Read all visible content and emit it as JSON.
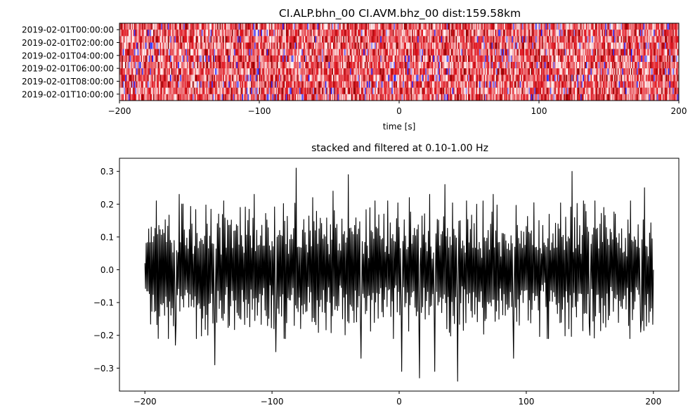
{
  "chart_data": [
    {
      "type": "heatmap",
      "title": "CI.ALP.bhn_00 CI.AVM.bhz_00  dist:159.58km",
      "xlabel": "time [s]",
      "ylabel": "",
      "xlim": [
        -200,
        200
      ],
      "x_ticks": [
        "−200",
        "−100",
        "0",
        "100",
        "200"
      ],
      "x_tick_values": [
        -200,
        -100,
        0,
        100,
        200
      ],
      "y_ticks": [
        "2019-02-01T00:00:00",
        "2019-02-01T02:00:00",
        "2019-02-01T04:00:00",
        "2019-02-01T06:00:00",
        "2019-02-01T08:00:00",
        "2019-02-01T10:00:00"
      ],
      "rows": 12,
      "colormap": "seismic",
      "colors": {
        "negative": "#1a1aff",
        "zero": "#ffffff",
        "positive": "#e0141e",
        "deep_positive": "#8c0000"
      }
    },
    {
      "type": "line",
      "title": "stacked and filtered at 0.10-1.00 Hz",
      "xlabel": "",
      "ylabel": "",
      "xlim": [
        -220,
        220
      ],
      "ylim": [
        -0.37,
        0.34
      ],
      "x_ticks": [
        "−200",
        "−100",
        "0",
        "100",
        "200"
      ],
      "x_tick_values": [
        -200,
        -100,
        0,
        100,
        200
      ],
      "y_ticks": [
        "0.3",
        "0.2",
        "0.1",
        "0.0",
        "−0.1",
        "−0.2",
        "−0.3"
      ],
      "y_tick_values": [
        0.3,
        0.2,
        0.1,
        0.0,
        -0.1,
        -0.2,
        -0.3
      ],
      "line_color": "#000000",
      "sample_interval_s": 0.5,
      "x_range": [
        -200,
        200
      ],
      "peaks": [
        {
          "x": -200,
          "y": 0.02
        },
        {
          "x": -195,
          "y": 0.13
        },
        {
          "x": -176,
          "y": -0.23
        },
        {
          "x": -173,
          "y": 0.23
        },
        {
          "x": -163,
          "y": 0.14
        },
        {
          "x": -145,
          "y": -0.29
        },
        {
          "x": -142,
          "y": 0.17
        },
        {
          "x": -125,
          "y": 0.19
        },
        {
          "x": -114,
          "y": 0.23
        },
        {
          "x": -97,
          "y": -0.25
        },
        {
          "x": -81,
          "y": 0.31
        },
        {
          "x": -68,
          "y": 0.22
        },
        {
          "x": -52,
          "y": 0.24
        },
        {
          "x": -40,
          "y": 0.29
        },
        {
          "x": -30,
          "y": -0.27
        },
        {
          "x": -12,
          "y": 0.17
        },
        {
          "x": 2,
          "y": -0.31
        },
        {
          "x": 8,
          "y": 0.22
        },
        {
          "x": 16,
          "y": -0.33
        },
        {
          "x": 24,
          "y": 0.23
        },
        {
          "x": 28,
          "y": -0.31
        },
        {
          "x": 36,
          "y": 0.26
        },
        {
          "x": 46,
          "y": -0.34
        },
        {
          "x": 61,
          "y": 0.2
        },
        {
          "x": 74,
          "y": 0.23
        },
        {
          "x": 90,
          "y": -0.27
        },
        {
          "x": 110,
          "y": 0.15
        },
        {
          "x": 136,
          "y": 0.3
        },
        {
          "x": 150,
          "y": -0.2
        },
        {
          "x": 170,
          "y": 0.17
        },
        {
          "x": 190,
          "y": -0.19
        },
        {
          "x": 193,
          "y": 0.25
        },
        {
          "x": 200,
          "y": 0.0
        }
      ]
    }
  ]
}
